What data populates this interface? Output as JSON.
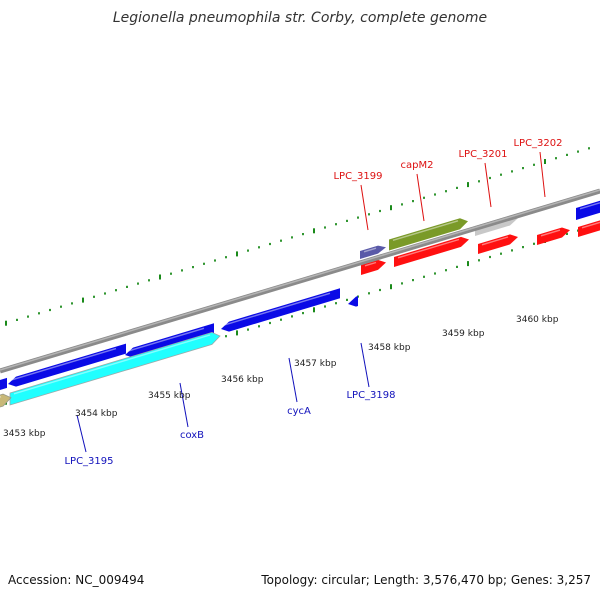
{
  "title": "Legionella pneumophila str. Corby, complete genome",
  "footer": {
    "accession": "Accession: NC_009494",
    "summary": "Topology: circular; Length: 3,576,470 bp; Genes: 3,257"
  },
  "colors": {
    "backbone": "#8a8a8a",
    "blue": "#0a0ae6",
    "cyan": "#20ffff",
    "red": "#ff1010",
    "olive": "#7a9a28",
    "grey": "#c8c8c8",
    "tan": "#c8b878",
    "slate": "#5a5aa8",
    "tick": "#1a8a1a",
    "label_red": "#dd1111",
    "label_blue": "#1111bb"
  },
  "tick_labels": [
    {
      "id": "3453",
      "text": "3453 kbp"
    },
    {
      "id": "3454",
      "text": "3454 kbp"
    },
    {
      "id": "3455",
      "text": "3455 kbp"
    },
    {
      "id": "3456",
      "text": "3456 kbp"
    },
    {
      "id": "3457",
      "text": "3457 kbp"
    },
    {
      "id": "3458",
      "text": "3458 kbp"
    },
    {
      "id": "3459",
      "text": "3459 kbp"
    },
    {
      "id": "3460",
      "text": "3460 kbp"
    }
  ],
  "gene_labels": [
    {
      "id": "LPC_3199",
      "text": "LPC_3199",
      "color": "label_red"
    },
    {
      "id": "capM2",
      "text": "capM2",
      "color": "label_red"
    },
    {
      "id": "LPC_3201",
      "text": "LPC_3201",
      "color": "label_red"
    },
    {
      "id": "LPC_3202",
      "text": "LPC_3202",
      "color": "label_red"
    },
    {
      "id": "LPC_3198",
      "text": "LPC_3198",
      "color": "label_blue"
    },
    {
      "id": "cycA",
      "text": "cycA",
      "color": "label_blue"
    },
    {
      "id": "coxB",
      "text": "coxB",
      "color": "label_blue"
    },
    {
      "id": "LPC_3195",
      "text": "LPC_3195",
      "color": "label_blue"
    }
  ]
}
